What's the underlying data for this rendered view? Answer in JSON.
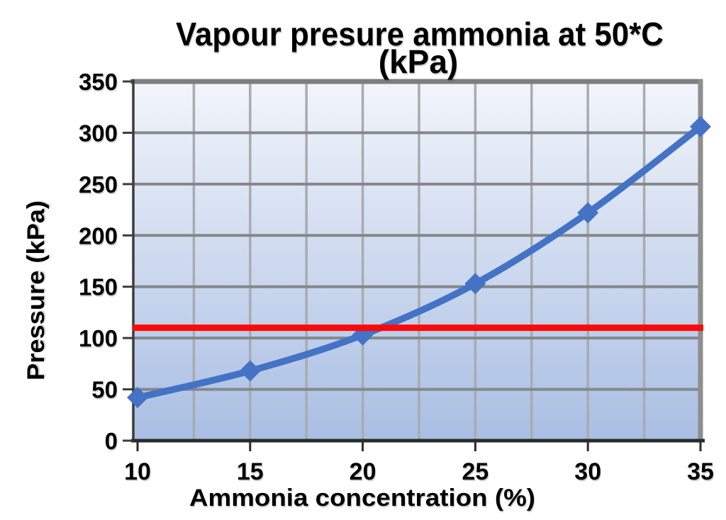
{
  "chart_data": {
    "type": "line",
    "title_line1": "Vapour presure ammonia at 50*C",
    "title_line2": "(kPa)",
    "xlabel": "Ammonia concentration (%)",
    "ylabel": "Pressure (kPa)",
    "x": [
      10,
      15,
      20,
      25,
      30,
      35
    ],
    "series": [
      {
        "name": "vapour-pressure-ammonia",
        "values": [
          42,
          68,
          103,
          153,
          222,
          306
        ],
        "color": "#4472C4",
        "marker": "diamond",
        "smooth": true
      }
    ],
    "reference_line": {
      "value": 110,
      "color": "#FB0A08"
    },
    "xlim": [
      10,
      35
    ],
    "ylim": [
      0,
      350
    ],
    "x_ticks": [
      10,
      15,
      20,
      25,
      30,
      35
    ],
    "y_ticks": [
      0,
      50,
      100,
      150,
      200,
      250,
      300,
      350
    ],
    "x_grid_step": 2.5,
    "y_grid_step": 50,
    "grid": true,
    "legend": "none",
    "colors": {
      "plot_bg_top": "#F2F5FB",
      "plot_bg_bottom": "#A9BEE3",
      "grid_horizontal": "#85878B",
      "grid_vertical": "#A8ABB0",
      "axis_left": "#3C3C3C",
      "axis_bottom": "#2B2B2B",
      "border_top": "#7E7E7E",
      "border_right": "#8E8E8E",
      "text": "#000000"
    }
  }
}
